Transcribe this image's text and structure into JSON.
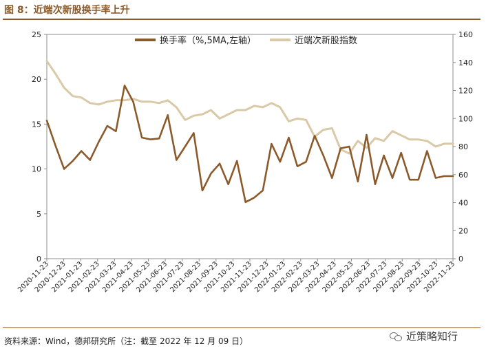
{
  "header": {
    "title": "图 8：近端次新股换手率上升"
  },
  "footer": {
    "source": "资料来源：Wind，德邦研究所（注：截至 2022 年 12 月 09 日）",
    "watermark": "近策略知行"
  },
  "colors": {
    "turnover": "#8b5a2b",
    "index": "#d9c9a6",
    "accent": "#8b5a2b"
  },
  "chart_data": {
    "type": "line",
    "title": "",
    "x_labels": [
      "2020-11-23",
      "2020-12-23",
      "2021-01-23",
      "2021-02-23",
      "2021-03-23",
      "2021-04-23",
      "2021-05-23",
      "2021-06-23",
      "2021-07-23",
      "2021-08-23",
      "2021-09-23",
      "2021-10-23",
      "2021-11-23",
      "2021-12-23",
      "2022-01-23",
      "2022-02-23",
      "2022-03-23",
      "2022-04-23",
      "2022-05-23",
      "2022-06-23",
      "2022-07-23",
      "2022-08-23",
      "2022-09-23",
      "2022-10-23",
      "2022-11-23"
    ],
    "y_left": {
      "ylim": [
        0,
        25
      ],
      "ticks": [
        0,
        5,
        10,
        15,
        20,
        25
      ]
    },
    "y_right": {
      "ylim": [
        0,
        160
      ],
      "ticks": [
        0,
        20,
        40,
        60,
        80,
        100,
        120,
        140,
        160
      ]
    },
    "grid": false,
    "legend_position": "top",
    "series": [
      {
        "name": "换手率（%,5MA,左轴）",
        "axis": "left",
        "color": "#8b5a2b",
        "values": [
          15.4,
          12.6,
          10.0,
          10.9,
          12.0,
          11.0,
          13.0,
          14.8,
          14.2,
          19.3,
          17.5,
          13.5,
          13.3,
          13.4,
          16.0,
          11.0,
          12.5,
          14.0,
          7.6,
          9.5,
          10.6,
          8.3,
          10.9,
          6.3,
          6.8,
          7.6,
          12.8,
          10.8,
          13.5,
          10.3,
          10.8,
          13.7,
          11.5,
          9.0,
          12.3,
          12.5,
          8.6,
          13.8,
          8.3,
          11.5,
          9.0,
          11.8,
          8.8,
          8.8,
          12.0,
          9.0,
          9.2,
          9.2
        ]
      },
      {
        "name": "近端次新股指数",
        "axis": "right",
        "color": "#d9c9a6",
        "values": [
          141,
          132,
          122,
          116,
          115,
          111,
          110,
          112,
          113,
          113,
          114,
          112,
          112,
          111,
          113,
          108,
          99,
          102,
          103,
          106,
          100,
          103,
          106,
          106,
          109,
          108,
          111,
          108,
          98,
          100,
          99,
          87,
          92,
          93,
          78,
          75,
          84,
          79,
          86,
          84,
          91,
          88,
          85,
          85,
          84,
          80,
          82,
          82
        ]
      }
    ]
  }
}
